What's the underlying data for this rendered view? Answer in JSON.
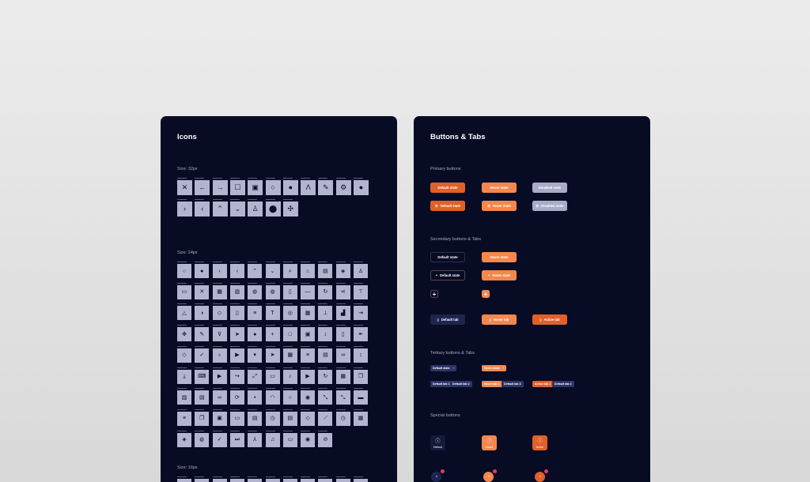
{
  "icons_panel": {
    "title": "Icons",
    "size32": "Size: 32px",
    "size24": "Size: 24px",
    "size16": "Size: 16px",
    "icons32": [
      "close",
      "arrow-left",
      "arrow-right",
      "checkbox-empty",
      "checkbox-filled",
      "radio",
      "checkmark-filled",
      "compass",
      "pushpin",
      "settings",
      "drop",
      "chevron-right",
      "chevron-left",
      "chevron-up",
      "chevron-down",
      "person",
      "location",
      "drone"
    ],
    "icons24": [
      "radio",
      "checkmark-filled",
      "chevron-right",
      "chevron-left",
      "chevron-up",
      "chevron-down",
      "search",
      "home",
      "document",
      "cube",
      "person",
      "folder",
      "close",
      "grid",
      "book",
      "globe",
      "globe",
      "clipboard",
      "minus",
      "refresh",
      "share",
      "pin",
      "warning",
      "half-circle",
      "tag",
      "clipboard",
      "list",
      "text",
      "locate",
      "table",
      "tree",
      "chart",
      "exit",
      "move",
      "edit",
      "filter",
      "send",
      "info",
      "plus",
      "square",
      "checkbox-filled",
      "sort",
      "clipboard",
      "pen",
      "tag",
      "check",
      "bulb",
      "play",
      "caret-down",
      "send",
      "table",
      "list",
      "storage",
      "link",
      "sort",
      "download",
      "code",
      "play",
      "redirect",
      "expand",
      "chat",
      "mic",
      "video",
      "refresh",
      "grid",
      "copy",
      "image",
      "document",
      "link",
      "sync",
      "gear",
      "wifi",
      "radio",
      "camera",
      "arrows",
      "arrows",
      "card",
      "list",
      "copy",
      "lock",
      "folder",
      "document",
      "clock",
      "document",
      "tag",
      "ruler",
      "clock",
      "calculator",
      "cube",
      "globe",
      "check",
      "skip",
      "network",
      "bell",
      "chat",
      "eye",
      "eye-off"
    ]
  },
  "buttons_panel": {
    "title": "Buttons & Tabs",
    "primary": {
      "heading": "Primary buttons",
      "default": "Default state",
      "hover": "Hover state",
      "disabled": "Disabled state"
    },
    "secondary": {
      "heading": "Secondary buttons & Tabs",
      "default": "Default state",
      "hover": "Hover state",
      "default_tab": "Default tab",
      "hover_tab": "Hover tab",
      "active_tab": "Active tab"
    },
    "tertiary": {
      "heading": "Tertiary buttons & Tabs",
      "default": "Default state",
      "hover": "Hover state",
      "tab1": "Default tab 1",
      "tab2": "Default tab 2",
      "hover_tab1": "Hover tab 1",
      "active_tab1": "Active tab 1"
    },
    "special": {
      "heading": "Special buttons",
      "default": "Default",
      "hover": "Hover",
      "active": "Active"
    }
  },
  "colors": {
    "panel": "#070b24",
    "primary": "#e0602a",
    "hover": "#f3884f",
    "disabled": "#a9abc8",
    "tertiary": "#2c3566"
  }
}
